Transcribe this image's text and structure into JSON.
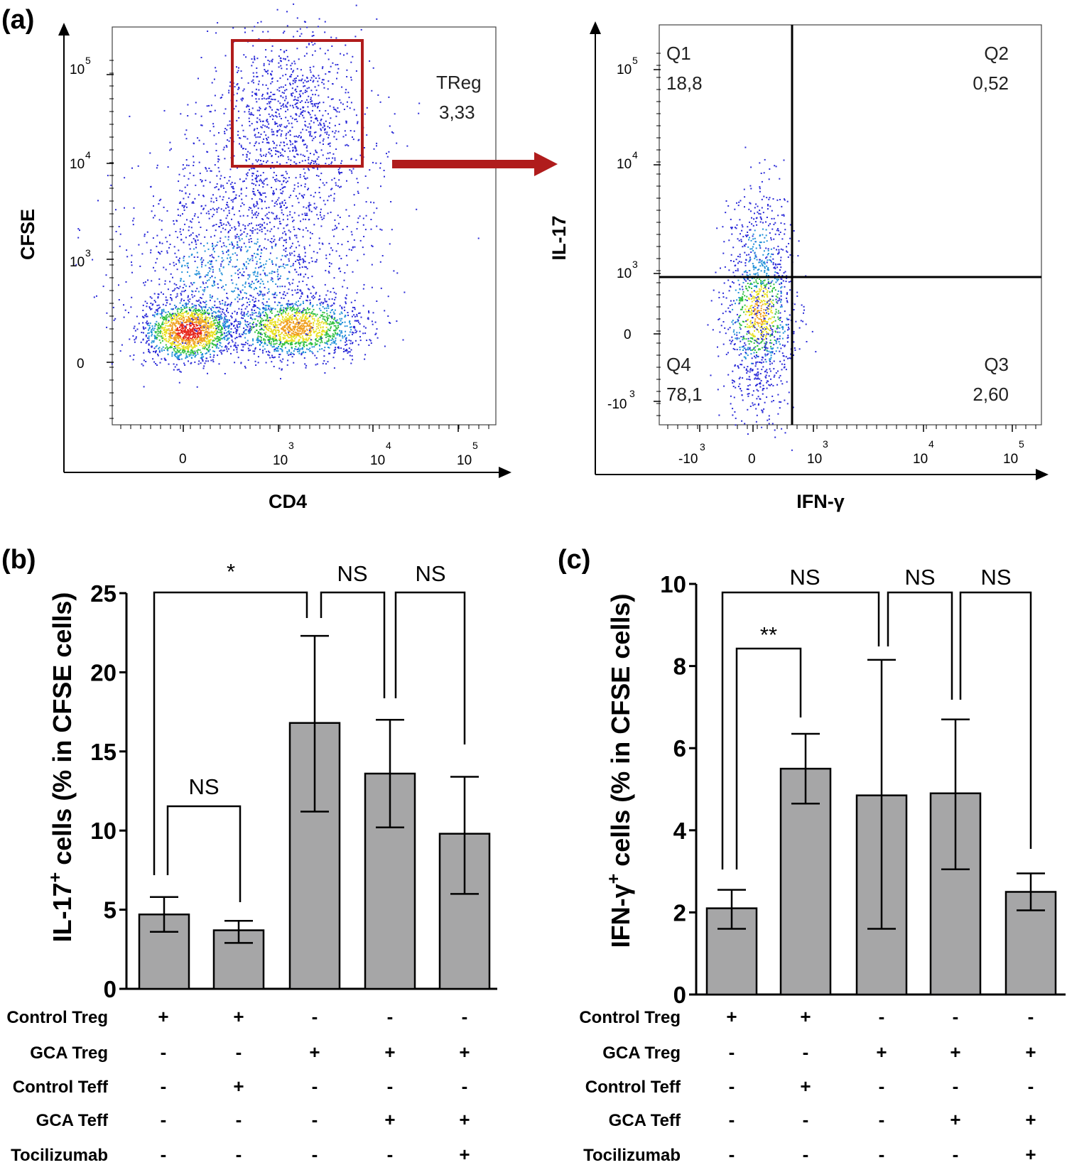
{
  "panels": {
    "a": "(a)",
    "b": "(b)",
    "c": "(c)"
  },
  "flow_cd4_cfse": {
    "xlabel": "CD4",
    "ylabel": "CFSE",
    "x_ticks": [
      {
        "base": "0",
        "exp": ""
      },
      {
        "base": "10",
        "exp": "3"
      },
      {
        "base": "10",
        "exp": "4"
      },
      {
        "base": "10",
        "exp": "5"
      }
    ],
    "y_ticks": [
      {
        "base": "0",
        "exp": ""
      },
      {
        "base": "10",
        "exp": "3"
      },
      {
        "base": "10",
        "exp": "4"
      },
      {
        "base": "10",
        "exp": "5"
      }
    ],
    "gate_name": "TReg",
    "gate_value": "3,33",
    "gate_color": "#b01c1c"
  },
  "flow_ifng_il17": {
    "xlabel": "IFN-γ",
    "ylabel": "IL-17",
    "x_ticks": [
      {
        "base": "-10",
        "exp": "3"
      },
      {
        "base": "0",
        "exp": ""
      },
      {
        "base": "10",
        "exp": "3"
      },
      {
        "base": "10",
        "exp": "4"
      },
      {
        "base": "10",
        "exp": "5"
      }
    ],
    "y_ticks": [
      {
        "base": "-10",
        "exp": "3"
      },
      {
        "base": "0",
        "exp": ""
      },
      {
        "base": "10",
        "exp": "3"
      },
      {
        "base": "10",
        "exp": "4"
      },
      {
        "base": "10",
        "exp": "5"
      }
    ],
    "quadrants": [
      {
        "name": "Q1",
        "value": "18,8"
      },
      {
        "name": "Q2",
        "value": "0,52"
      },
      {
        "name": "Q3",
        "value": "2,60"
      },
      {
        "name": "Q4",
        "value": "78,1"
      }
    ]
  },
  "conditions": {
    "labels": [
      "Control Treg",
      "GCA Treg",
      "Control Teff",
      "GCA Teff",
      "Tocilizumab"
    ],
    "signs": [
      [
        "+",
        "+",
        "-",
        "-",
        "-"
      ],
      [
        "-",
        "-",
        "+",
        "+",
        "+"
      ],
      [
        "-",
        "+",
        "-",
        "-",
        "-"
      ],
      [
        "-",
        "-",
        "-",
        "+",
        "+"
      ],
      [
        "-",
        "-",
        "-",
        "-",
        "+"
      ]
    ]
  },
  "chart_data": [
    {
      "type": "bar",
      "panel": "b",
      "ylabel": "IL-17+ cells (% in CFSE cells)",
      "ylabel_main": "IL-17",
      "ylabel_sup": "+",
      "ylabel_rest": " cells (% in CFSE cells)",
      "ylim": [
        0,
        25
      ],
      "yticks": [
        "0",
        "5",
        "10",
        "15",
        "20",
        "25"
      ],
      "values": [
        4.7,
        3.7,
        16.8,
        13.6,
        9.8
      ],
      "err_low": [
        3.6,
        2.9,
        11.2,
        10.2,
        6.0
      ],
      "err_high": [
        5.8,
        4.3,
        22.3,
        17.0,
        13.4
      ],
      "bar_color": "#a6a6a7",
      "comparisons": [
        {
          "from": 0,
          "to": 1,
          "label": "NS"
        },
        {
          "from": 0,
          "to": 2,
          "label": "*"
        },
        {
          "from": 2,
          "to": 3,
          "label": "NS"
        },
        {
          "from": 3,
          "to": 4,
          "label": "NS"
        }
      ]
    },
    {
      "type": "bar",
      "panel": "c",
      "ylabel": "IFN-γ+ cells (% in CFSE cells)",
      "ylabel_main": "IFN-γ",
      "ylabel_sup": "+",
      "ylabel_rest": " cells (% in CFSE cells)",
      "ylim": [
        0,
        10
      ],
      "yticks": [
        "0",
        "2",
        "4",
        "6",
        "8",
        "10"
      ],
      "values": [
        2.1,
        5.5,
        4.85,
        4.9,
        2.5
      ],
      "err_low": [
        1.6,
        4.65,
        1.6,
        3.05,
        2.05
      ],
      "err_high": [
        2.55,
        6.35,
        8.15,
        6.7,
        2.95
      ],
      "bar_color": "#a6a6a7",
      "comparisons": [
        {
          "from": 0,
          "to": 2,
          "label": "NS"
        },
        {
          "from": 0,
          "to": 1,
          "label": "**"
        },
        {
          "from": 2,
          "to": 3,
          "label": "NS"
        },
        {
          "from": 3,
          "to": 4,
          "label": "NS"
        }
      ]
    }
  ]
}
